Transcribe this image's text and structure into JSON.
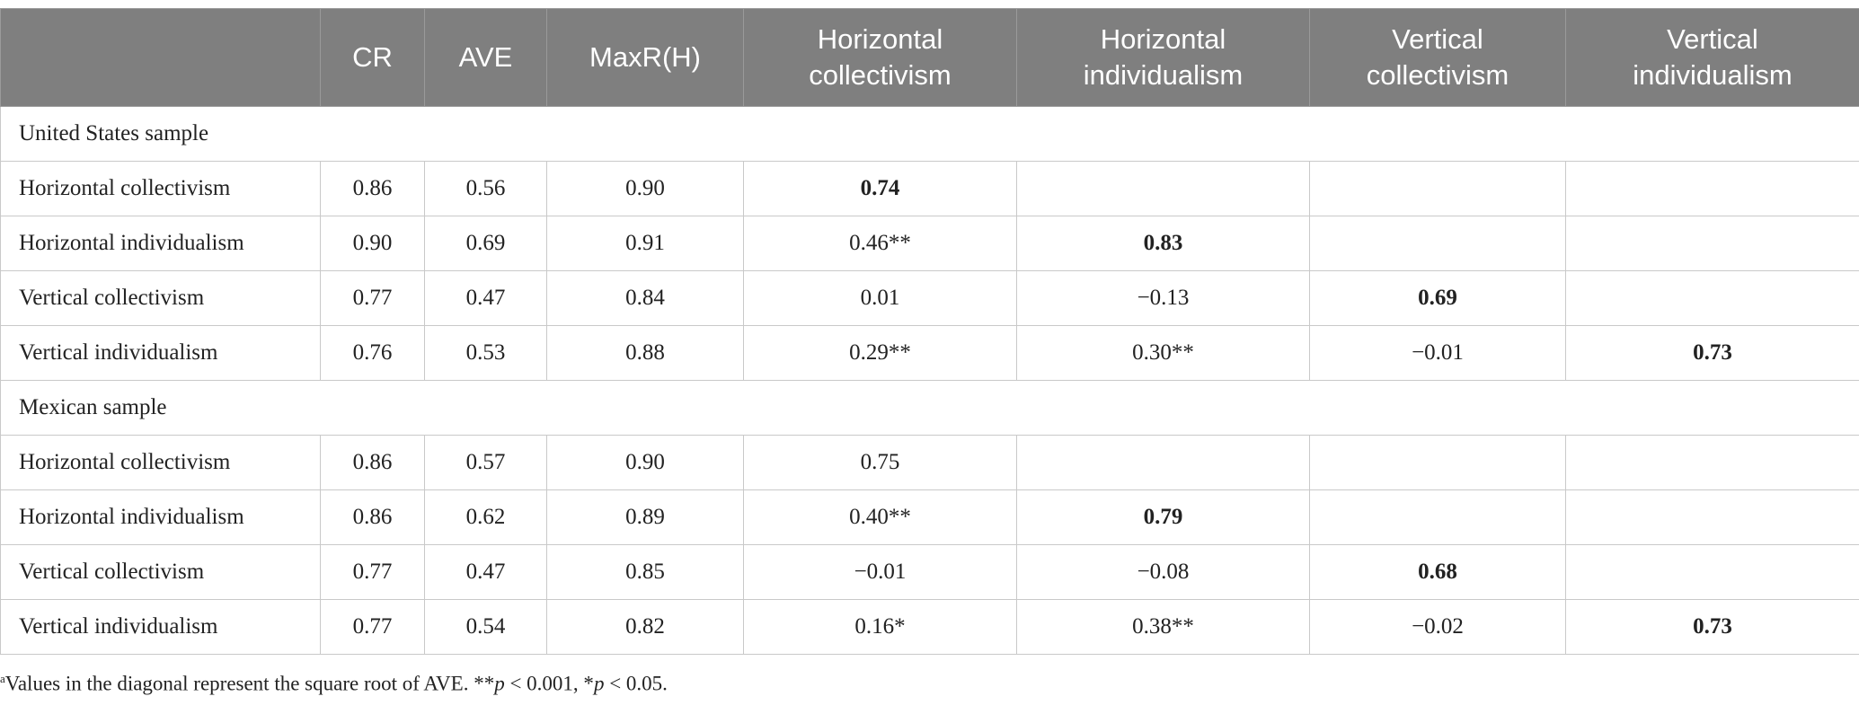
{
  "header": {
    "columns": [
      "CR",
      "AVE",
      "MaxR(H)",
      "Horizontal collectivism",
      "Horizontal individualism",
      "Vertical collectivism",
      "Vertical individualism"
    ]
  },
  "sections": [
    {
      "title": "United States sample",
      "rows": [
        {
          "label": "Horizontal collectivism",
          "cells": [
            {
              "text": "0.86"
            },
            {
              "text": "0.56"
            },
            {
              "text": "0.90"
            },
            {
              "text": "0.74",
              "bold": true
            }
          ]
        },
        {
          "label": "Horizontal individualism",
          "cells": [
            {
              "text": "0.90"
            },
            {
              "text": "0.69"
            },
            {
              "text": "0.91"
            },
            {
              "text": "0.46**"
            },
            {
              "text": "0.83",
              "bold": true
            }
          ]
        },
        {
          "label": "Vertical collectivism",
          "cells": [
            {
              "text": "0.77"
            },
            {
              "text": "0.47"
            },
            {
              "text": "0.84"
            },
            {
              "text": "0.01"
            },
            {
              "text": "−0.13"
            },
            {
              "text": "0.69",
              "bold": true
            }
          ]
        },
        {
          "label": "Vertical individualism",
          "cells": [
            {
              "text": "0.76"
            },
            {
              "text": "0.53"
            },
            {
              "text": "0.88"
            },
            {
              "text": "0.29**"
            },
            {
              "text": "0.30**"
            },
            {
              "text": "−0.01"
            },
            {
              "text": "0.73",
              "bold": true
            }
          ]
        }
      ]
    },
    {
      "title": "Mexican sample",
      "rows": [
        {
          "label": "Horizontal collectivism",
          "cells": [
            {
              "text": "0.86"
            },
            {
              "text": "0.57"
            },
            {
              "text": "0.90"
            },
            {
              "text": "0.75"
            }
          ]
        },
        {
          "label": "Horizontal individualism",
          "cells": [
            {
              "text": "0.86"
            },
            {
              "text": "0.62"
            },
            {
              "text": "0.89"
            },
            {
              "text": "0.40**"
            },
            {
              "text": "0.79",
              "bold": true
            }
          ]
        },
        {
          "label": "Vertical collectivism",
          "cells": [
            {
              "text": "0.77"
            },
            {
              "text": "0.47"
            },
            {
              "text": "0.85"
            },
            {
              "text": "−0.01"
            },
            {
              "text": "−0.08"
            },
            {
              "text": "0.68",
              "bold": true
            }
          ]
        },
        {
          "label": "Vertical individualism",
          "cells": [
            {
              "text": "0.77"
            },
            {
              "text": "0.54"
            },
            {
              "text": "0.82"
            },
            {
              "text": "0.16*"
            },
            {
              "text": "0.38**"
            },
            {
              "text": "−0.02"
            },
            {
              "text": "0.73",
              "bold": true
            }
          ]
        }
      ]
    }
  ],
  "footnote": {
    "marker": "a",
    "parts": [
      "Values in the diagonal represent the square root of AVE. **",
      "p",
      " < 0.001, *",
      "p",
      " < 0.05."
    ]
  }
}
